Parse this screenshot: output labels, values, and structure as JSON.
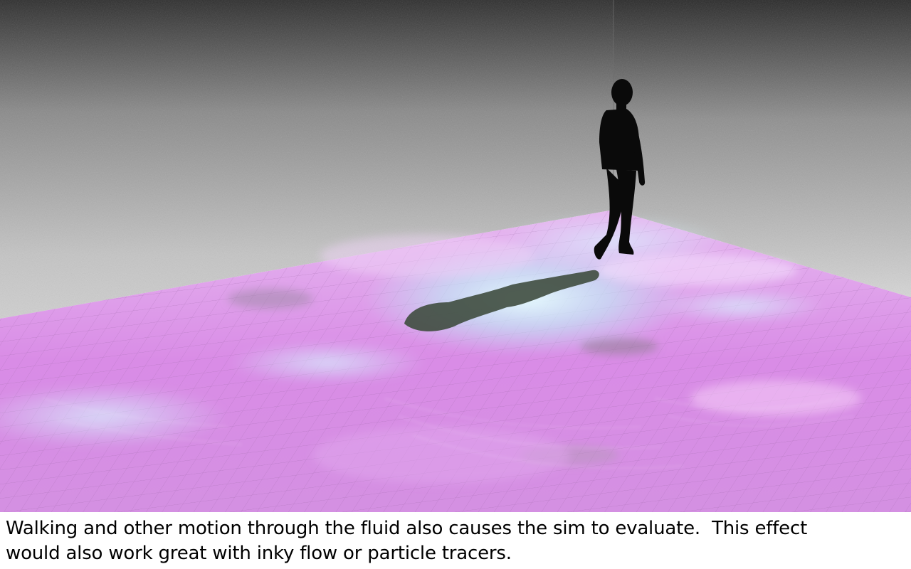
{
  "caption": {
    "line1": "Walking and other motion through the fluid also causes the sim to evaluate.  This effect",
    "line2": "would also work great with inky flow or particle tracers."
  },
  "scene": {
    "colors": {
      "wall_light": "#b9b9b9",
      "wall_dark": "#3a3a3a",
      "floor_pink": "#d98ce6",
      "floor_violet": "#b87fd8",
      "floor_cyan": "#bdf3f7",
      "silhouette": "#0a0a0a",
      "shadow": "#3f4d3f"
    }
  }
}
